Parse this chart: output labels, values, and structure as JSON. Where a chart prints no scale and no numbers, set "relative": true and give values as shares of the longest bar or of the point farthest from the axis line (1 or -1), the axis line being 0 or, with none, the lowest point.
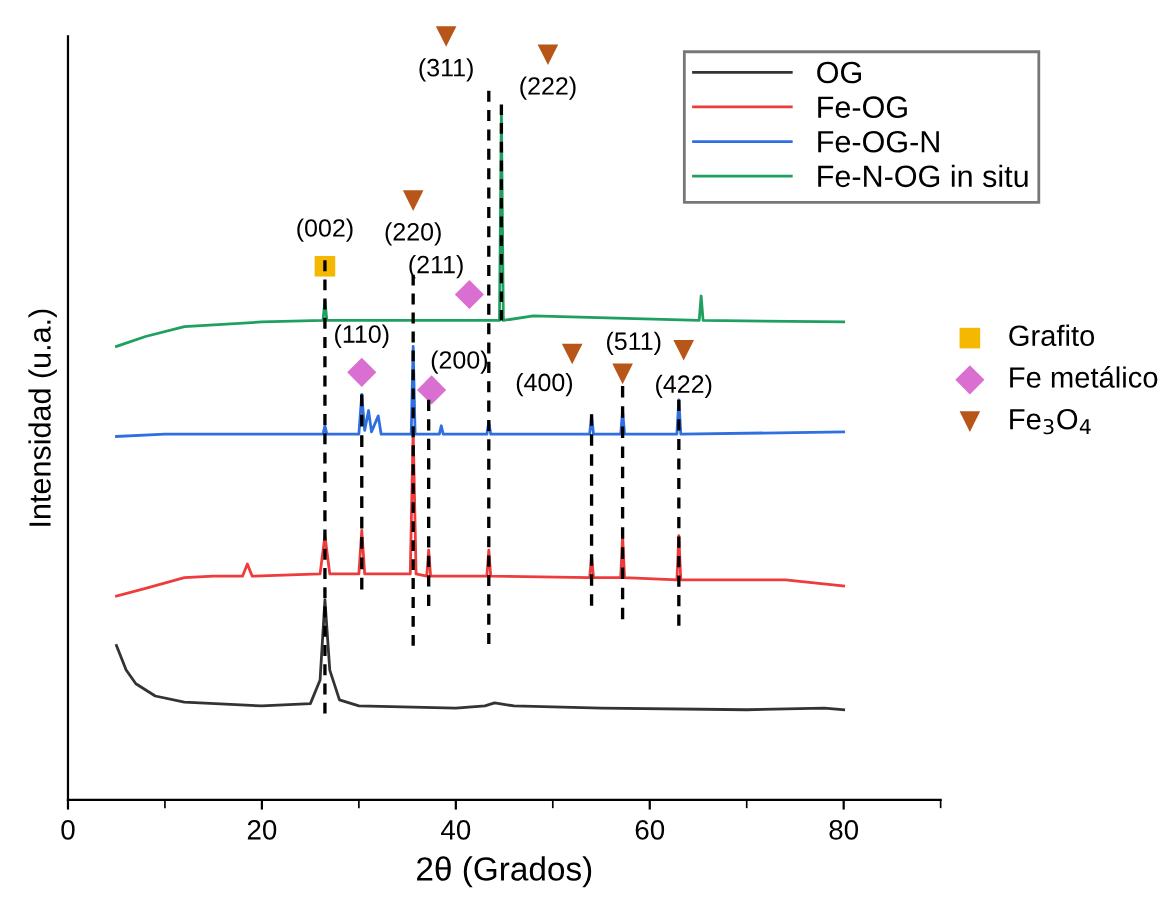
{
  "chart_data": {
    "type": "line",
    "relative": true,
    "xlabel": "2θ (Grados)",
    "ylabel": "Intensidad (u.a.)",
    "xlim": [
      0,
      90
    ],
    "xticks": [
      0,
      {
        "value": 10,
        "label": null
      },
      20,
      {
        "value": 30,
        "label": null
      },
      40,
      {
        "value": 50,
        "label": null
      },
      60,
      {
        "value": 70,
        "label": null
      },
      80,
      {
        "value": 90,
        "label": null
      }
    ],
    "grid": false,
    "legend": "top right",
    "series": [
      {
        "name": "OG",
        "color": "#333333",
        "x": [
          5,
          6,
          7,
          9,
          12,
          20,
          25,
          26,
          26.5,
          27,
          28,
          30,
          40,
          43,
          44,
          46,
          55,
          70,
          78,
          80
        ],
        "values": [
          0.202,
          0.17,
          0.152,
          0.136,
          0.128,
          0.123,
          0.126,
          0.157,
          0.262,
          0.17,
          0.131,
          0.123,
          0.12,
          0.123,
          0.127,
          0.123,
          0.12,
          0.118,
          0.12,
          0.118
        ]
      },
      {
        "name": "Fe-OG",
        "color": "#ee3b3b",
        "x": [
          5,
          8,
          12,
          15,
          18,
          18.5,
          19,
          26,
          26.5,
          27,
          30,
          30.3,
          30.6,
          35.3,
          35.6,
          35.9,
          37,
          37.2,
          37.4,
          43.2,
          43.4,
          43.6,
          53.8,
          54,
          54.2,
          57,
          57.2,
          57.4,
          62.8,
          63,
          63.2,
          74,
          80
        ],
        "values": [
          0.267,
          0.277,
          0.291,
          0.293,
          0.293,
          0.309,
          0.293,
          0.296,
          0.346,
          0.296,
          0.296,
          0.353,
          0.296,
          0.296,
          0.484,
          0.296,
          0.293,
          0.327,
          0.293,
          0.293,
          0.327,
          0.293,
          0.291,
          0.319,
          0.291,
          0.291,
          0.346,
          0.291,
          0.288,
          0.346,
          0.288,
          0.288,
          0.28
        ]
      },
      {
        "name": "Fe-OG-N",
        "color": "#2f6fe0",
        "x": [
          5,
          10,
          26.3,
          26.5,
          26.7,
          30,
          30.3,
          30.6,
          31,
          31.3,
          32,
          32.3,
          35.4,
          35.6,
          35.8,
          38.3,
          38.5,
          38.7,
          43.2,
          43.4,
          43.6,
          53.8,
          54,
          54.2,
          57,
          57.2,
          57.4,
          62.8,
          63,
          63.2,
          80
        ],
        "values": [
          0.476,
          0.479,
          0.479,
          0.49,
          0.479,
          0.479,
          0.531,
          0.484,
          0.51,
          0.482,
          0.503,
          0.479,
          0.479,
          0.594,
          0.479,
          0.479,
          0.49,
          0.479,
          0.479,
          0.495,
          0.479,
          0.479,
          0.503,
          0.479,
          0.479,
          0.51,
          0.479,
          0.479,
          0.524,
          0.479,
          0.482
        ]
      },
      {
        "name": "Fe-N-OG in situ",
        "color": "#1fa060",
        "x": [
          5,
          8,
          12,
          20,
          26.3,
          26.5,
          26.7,
          44.5,
          44.7,
          44.9,
          48,
          65.1,
          65.3,
          65.5,
          80
        ],
        "values": [
          0.594,
          0.607,
          0.62,
          0.626,
          0.628,
          0.654,
          0.628,
          0.628,
          0.903,
          0.628,
          0.634,
          0.628,
          0.66,
          0.628,
          0.626
        ]
      },
      {
        "color": "#000000",
        "line_style": "dashed",
        "x": [
          26.5,
          26.5
        ],
        "values": [
          0.707,
          0.113
        ]
      },
      {
        "color": "#000000",
        "line_style": "dashed",
        "x": [
          30.3,
          30.3
        ],
        "values": [
          0.531,
          0.275
        ]
      },
      {
        "color": "#000000",
        "line_style": "dashed",
        "x": [
          35.6,
          35.6
        ],
        "values": [
          0.688,
          0.202
        ]
      },
      {
        "color": "#000000",
        "line_style": "dashed",
        "x": [
          37.2,
          37.2
        ],
        "values": [
          0.524,
          0.254
        ]
      },
      {
        "color": "#000000",
        "line_style": "dashed",
        "x": [
          43.4,
          43.4
        ],
        "values": [
          0.929,
          0.204
        ]
      },
      {
        "color": "#000000",
        "line_style": "dashed",
        "x": [
          44.7,
          44.7
        ],
        "values": [
          0.911,
          0.628
        ]
      },
      {
        "color": "#000000",
        "line_style": "dashed",
        "x": [
          54,
          54
        ],
        "values": [
          0.505,
          0.254
        ]
      },
      {
        "color": "#000000",
        "line_style": "dashed",
        "x": [
          57.2,
          57.2
        ],
        "values": [
          0.542,
          0.236
        ]
      },
      {
        "color": "#000000",
        "line_style": "dashed",
        "x": [
          63,
          63
        ],
        "values": [
          0.524,
          0.228
        ]
      },
      {
        "name": "Grafito",
        "type": "scatter",
        "marker": "square",
        "color": "#f5b800",
        "x": [
          26.5
        ],
        "values": [
          0.699
        ]
      },
      {
        "name": "Fe metálico",
        "type": "scatter",
        "marker": "diamond",
        "color": "#d96fd0",
        "x": [
          30.3,
          37.5,
          41.4
        ],
        "values": [
          0.56,
          0.537,
          0.662
        ]
      },
      {
        "name": "Fe$_{3}$O$_{4}$",
        "type": "scatter",
        "marker": "triangle",
        "color": "#b8561a",
        "x": [
          39,
          49.5,
          35.6,
          52,
          57.2,
          63.5
        ],
        "values": [
          1.0,
          0.976,
          0.785,
          0.584,
          0.558,
          0.589
        ]
      }
    ],
    "annotations": [
      {
        "text": "(311)",
        "x": 39,
        "y": 1.0
      },
      {
        "text": "(222)",
        "x": 49.5,
        "y": 0.976
      },
      {
        "text": "(002)",
        "x": 26.5,
        "y": 0.699
      },
      {
        "text": "(220)",
        "x": 35.6,
        "y": 0.785
      },
      {
        "text": "(211)",
        "x": 41.4,
        "y": 0.662
      },
      {
        "text": "(110)",
        "x": 30.3,
        "y": 0.56
      },
      {
        "text": "(200)",
        "x": 37.5,
        "y": 0.537
      },
      {
        "text": "(400)",
        "x": 52,
        "y": 0.584
      },
      {
        "text": "(511)",
        "x": 57.2,
        "y": 0.558
      },
      {
        "text": "(422)",
        "x": 63.5,
        "y": 0.589
      }
    ]
  }
}
